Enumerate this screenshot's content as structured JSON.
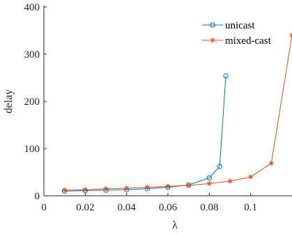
{
  "chart_data": {
    "type": "line",
    "title": "",
    "xlabel": "λ",
    "ylabel": "delay",
    "xlim": [
      0,
      0.12
    ],
    "ylim": [
      0,
      400
    ],
    "xticks": [
      0,
      0.02,
      0.04,
      0.06,
      0.08,
      0.1
    ],
    "xtick_labels": [
      "0",
      "0.02",
      "0.04",
      "0.06",
      "0.08",
      "0.1"
    ],
    "yticks": [
      0,
      100,
      200,
      300,
      400
    ],
    "ytick_labels": [
      "0",
      "100",
      "200",
      "300",
      "400"
    ],
    "grid": false,
    "legend_position": "top-right",
    "series": [
      {
        "name": "unicast",
        "color": "#0072BD",
        "marker": "circle",
        "x": [
          0.01,
          0.02,
          0.03,
          0.04,
          0.05,
          0.06,
          0.07,
          0.08,
          0.085,
          0.088
        ],
        "y": [
          10,
          11,
          12,
          13,
          15,
          18,
          23,
          38,
          62,
          254
        ]
      },
      {
        "name": "mixed-cast",
        "color": "#D95319",
        "marker": "asterisk",
        "x": [
          0.01,
          0.02,
          0.03,
          0.04,
          0.05,
          0.06,
          0.07,
          0.08,
          0.09,
          0.1,
          0.11,
          0.12
        ],
        "y": [
          12,
          13,
          15,
          16,
          18,
          20,
          22,
          26,
          31,
          40,
          69,
          340
        ]
      }
    ]
  }
}
